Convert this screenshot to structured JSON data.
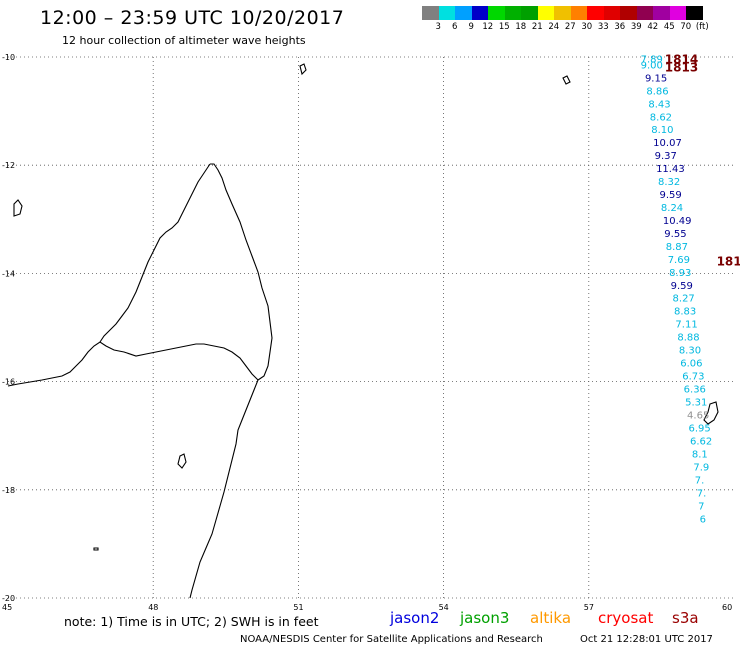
{
  "header": {
    "title": "12:00 – 23:59 UTC 10/20/2017",
    "subtitle": "12 hour collection of altimeter wave heights"
  },
  "colorbar": {
    "colors": [
      "#808080",
      "#00e0e0",
      "#00a0ff",
      "#0000c8",
      "#00d800",
      "#00b000",
      "#00a000",
      "#ffff00",
      "#f0c000",
      "#ff8000",
      "#ff0000",
      "#e00000",
      "#b00000",
      "#900050",
      "#a000a0",
      "#e000e0",
      "#000000"
    ],
    "labels": [
      "3",
      "6",
      "9",
      "12",
      "15",
      "18",
      "21",
      "24",
      "27",
      "30",
      "33",
      "36",
      "39",
      "42",
      "45",
      "70",
      "(ft)"
    ]
  },
  "axes": {
    "x_ticks": [
      "45",
      "48",
      "51",
      "54",
      "57",
      "60"
    ],
    "y_ticks": [
      "-10",
      "-12",
      "-14",
      "-16",
      "-18",
      "-20"
    ]
  },
  "wave_heights": [
    {
      "text": "7.89",
      "lon": 58.07,
      "lat": -10.03,
      "color": "#00b8e0"
    },
    {
      "text": "9.00",
      "lon": 58.07,
      "lat": -10.14,
      "color": "#00b8e0"
    },
    {
      "text": "9.15",
      "lon": 58.16,
      "lat": -10.38,
      "color": "#000090"
    },
    {
      "text": "8.86",
      "lon": 58.19,
      "lat": -10.62,
      "color": "#00b8e0"
    },
    {
      "text": "8.43",
      "lon": 58.23,
      "lat": -10.86,
      "color": "#00b8e0"
    },
    {
      "text": "8.62",
      "lon": 58.26,
      "lat": -11.1,
      "color": "#00b8e0"
    },
    {
      "text": "8.10",
      "lon": 58.29,
      "lat": -11.33,
      "color": "#00b8e0"
    },
    {
      "text": "10.07",
      "lon": 58.33,
      "lat": -11.57,
      "color": "#000090"
    },
    {
      "text": "9.37",
      "lon": 58.36,
      "lat": -11.81,
      "color": "#000090"
    },
    {
      "text": "11.43",
      "lon": 58.39,
      "lat": -12.05,
      "color": "#000090"
    },
    {
      "text": "8.32",
      "lon": 58.43,
      "lat": -12.29,
      "color": "#00b8e0"
    },
    {
      "text": "9.59",
      "lon": 58.46,
      "lat": -12.53,
      "color": "#000090"
    },
    {
      "text": "8.24",
      "lon": 58.49,
      "lat": -12.77,
      "color": "#00b8e0"
    },
    {
      "text": "10.49",
      "lon": 58.53,
      "lat": -13.01,
      "color": "#000090"
    },
    {
      "text": "9.55",
      "lon": 58.56,
      "lat": -13.25,
      "color": "#000090"
    },
    {
      "text": "8.87",
      "lon": 58.59,
      "lat": -13.49,
      "color": "#00b8e0"
    },
    {
      "text": "7.69",
      "lon": 58.63,
      "lat": -13.73,
      "color": "#00b8e0"
    },
    {
      "text": "8.93",
      "lon": 58.66,
      "lat": -13.97,
      "color": "#00b8e0"
    },
    {
      "text": "9.59",
      "lon": 58.69,
      "lat": -14.21,
      "color": "#000090"
    },
    {
      "text": "8.27",
      "lon": 58.73,
      "lat": -14.45,
      "color": "#00b8e0"
    },
    {
      "text": "8.83",
      "lon": 58.76,
      "lat": -14.69,
      "color": "#00b8e0"
    },
    {
      "text": "7.11",
      "lon": 58.79,
      "lat": -14.93,
      "color": "#00b8e0"
    },
    {
      "text": "8.88",
      "lon": 58.83,
      "lat": -15.17,
      "color": "#00b8e0"
    },
    {
      "text": "8.30",
      "lon": 58.86,
      "lat": -15.41,
      "color": "#00b8e0"
    },
    {
      "text": "6.06",
      "lon": 58.89,
      "lat": -15.65,
      "color": "#00b8e0"
    },
    {
      "text": "6.73",
      "lon": 58.93,
      "lat": -15.89,
      "color": "#00b8e0"
    },
    {
      "text": "6.36",
      "lon": 58.96,
      "lat": -16.13,
      "color": "#00b8e0"
    },
    {
      "text": "5.31",
      "lon": 58.99,
      "lat": -16.37,
      "color": "#00b8e0"
    },
    {
      "text": "4.65",
      "lon": 59.03,
      "lat": -16.61,
      "color": "#909090"
    },
    {
      "text": "6.95",
      "lon": 59.06,
      "lat": -16.85,
      "color": "#00b8e0"
    },
    {
      "text": "6.62",
      "lon": 59.09,
      "lat": -17.09,
      "color": "#00b8e0"
    },
    {
      "text": "8.1",
      "lon": 59.13,
      "lat": -17.33,
      "color": "#00b8e0"
    },
    {
      "text": "7.9",
      "lon": 59.16,
      "lat": -17.57,
      "color": "#00b8e0"
    },
    {
      "text": "7.",
      "lon": 59.19,
      "lat": -17.81,
      "color": "#00b8e0"
    },
    {
      "text": "7.",
      "lon": 59.23,
      "lat": -18.05,
      "color": "#00b8e0"
    },
    {
      "text": "7",
      "lon": 59.26,
      "lat": -18.29,
      "color": "#00b8e0"
    },
    {
      "text": "6",
      "lon": 59.29,
      "lat": -18.53,
      "color": "#00b8e0"
    }
  ],
  "pass_times": [
    {
      "text": "1814",
      "lon": 58.57,
      "lat": -10.03
    },
    {
      "text": "1813",
      "lon": 58.57,
      "lat": -10.18
    },
    {
      "text": "181",
      "lon": 59.64,
      "lat": -13.76
    }
  ],
  "footer": {
    "note": "note: 1) Time is in UTC; 2) SWH is in feet",
    "satellites": [
      {
        "name": "jason2",
        "color": "#0000dd"
      },
      {
        "name": "jason3",
        "color": "#00a000"
      },
      {
        "name": "altika",
        "color": "#ff9900"
      },
      {
        "name": "cryosat",
        "color": "#ff0000"
      },
      {
        "name": "s3a",
        "color": "#990000"
      }
    ],
    "credit": "NOAA/NESDIS Center for Satellite Applications and Research",
    "timestamp": "Oct 21 12:28:01 UTC 2017"
  }
}
